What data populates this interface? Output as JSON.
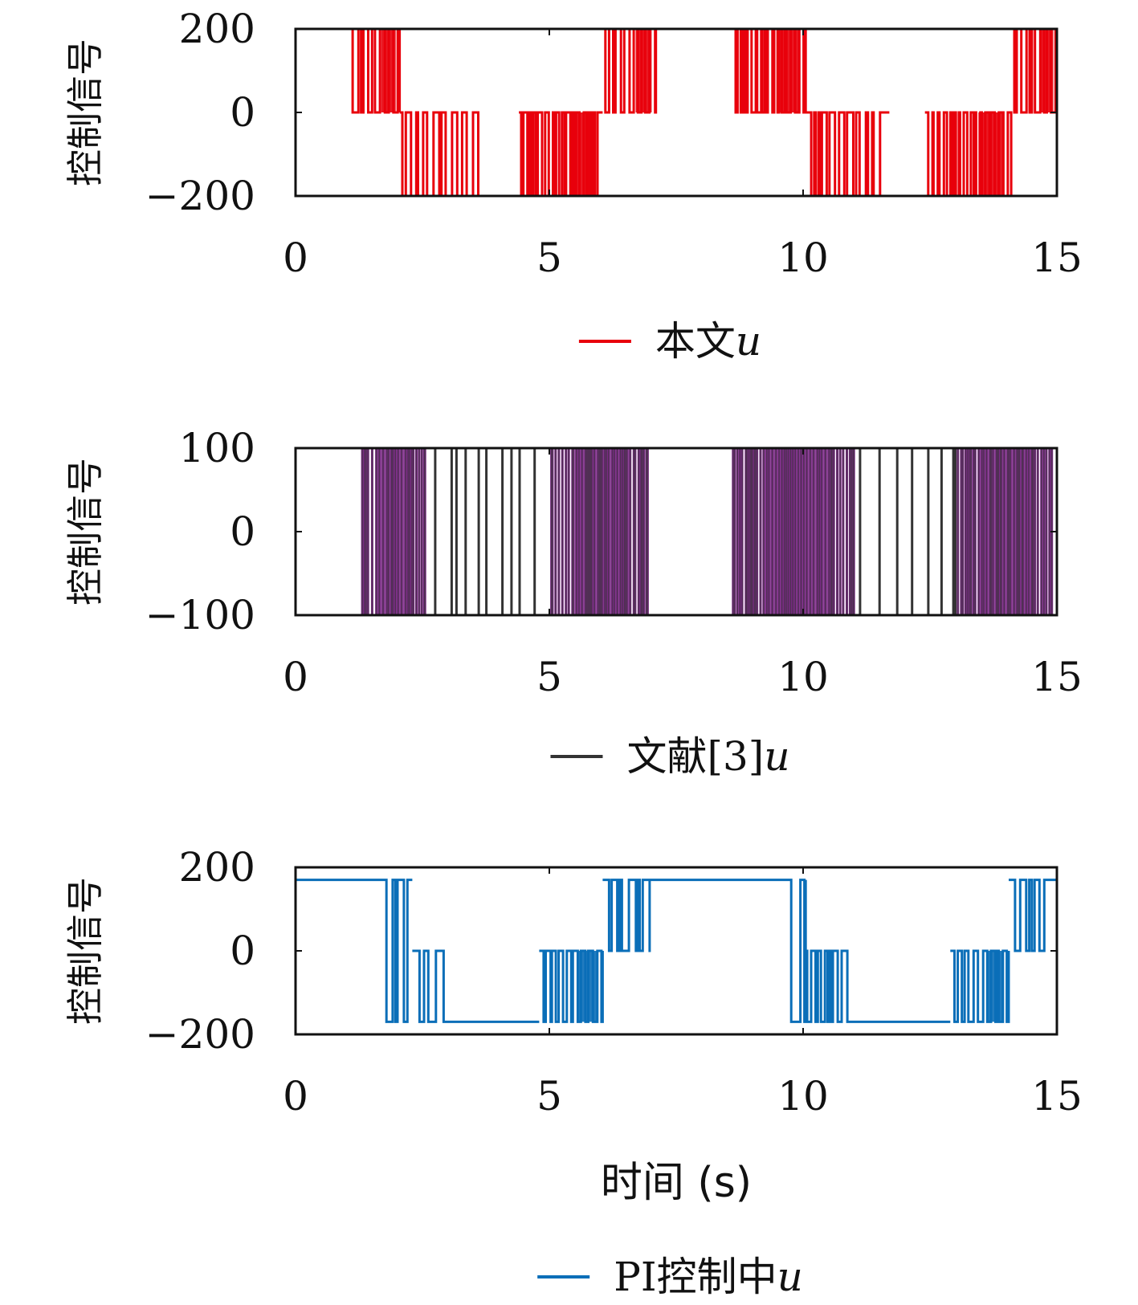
{
  "chart_data": [
    {
      "type": "line",
      "ylabel": "控制信号",
      "xlim": [
        0,
        15
      ],
      "ylim": [
        -200,
        200
      ],
      "xticks": [
        "0",
        "5",
        "10",
        "15"
      ],
      "yticks": [
        "200",
        "0",
        "−200"
      ],
      "legend": {
        "label": "本文",
        "var": "u",
        "position": "bottom-center"
      },
      "color": "#e8000b",
      "series": [
        {
          "name": "本文u",
          "levels": [
            200,
            0,
            -200
          ],
          "segments": [
            {
              "t0": 0.0,
              "t1": 1.1,
              "mode": "hold",
              "v": 200
            },
            {
              "t0": 1.1,
              "t1": 2.05,
              "mode": "switch",
              "hi": 200,
              "lo": 0,
              "density": 14
            },
            {
              "t0": 2.05,
              "t1": 3.6,
              "mode": "switch",
              "hi": 0,
              "lo": -200,
              "density": 12
            },
            {
              "t0": 3.6,
              "t1": 4.4,
              "mode": "hold",
              "v": -200
            },
            {
              "t0": 4.4,
              "t1": 6.05,
              "mode": "switch",
              "hi": 0,
              "lo": -200,
              "density": 18
            },
            {
              "t0": 6.05,
              "t1": 7.1,
              "mode": "switch",
              "hi": 200,
              "lo": 0,
              "density": 14
            },
            {
              "t0": 7.1,
              "t1": 8.6,
              "mode": "hold",
              "v": 200
            },
            {
              "t0": 8.6,
              "t1": 10.05,
              "mode": "switch",
              "hi": 200,
              "lo": 0,
              "density": 18
            },
            {
              "t0": 10.05,
              "t1": 11.7,
              "mode": "switch",
              "hi": 0,
              "lo": -200,
              "density": 12
            },
            {
              "t0": 11.7,
              "t1": 12.4,
              "mode": "hold",
              "v": -200
            },
            {
              "t0": 12.4,
              "t1": 14.1,
              "mode": "switch",
              "hi": 0,
              "lo": -200,
              "density": 18
            },
            {
              "t0": 14.1,
              "t1": 15.0,
              "mode": "switch",
              "hi": 200,
              "lo": 0,
              "density": 14
            }
          ]
        }
      ]
    },
    {
      "type": "line",
      "ylabel": "控制信号",
      "xlim": [
        0,
        15
      ],
      "ylim": [
        -100,
        100
      ],
      "xticks": [
        "0",
        "5",
        "10",
        "15"
      ],
      "yticks": [
        "100",
        "0",
        "−100"
      ],
      "legend": {
        "label": "文献[3]",
        "var": "u",
        "position": "bottom-center"
      },
      "color": "#333333",
      "fill_color": "#7b2a86",
      "series": [
        {
          "name": "文献[3]u",
          "levels": [
            100,
            -100
          ],
          "segments": [
            {
              "t0": 0.0,
              "t1": 1.25,
              "mode": "hold",
              "v": 100
            },
            {
              "t0": 1.25,
              "t1": 2.55,
              "mode": "switch",
              "hi": 100,
              "lo": -100,
              "density": 20,
              "fill": true
            },
            {
              "t0": 2.55,
              "t1": 5.0,
              "mode": "sparse",
              "hi": 100,
              "lo": -100,
              "density": 4
            },
            {
              "t0": 5.0,
              "t1": 7.0,
              "mode": "switch",
              "hi": 100,
              "lo": -100,
              "density": 22,
              "fill": true
            },
            {
              "t0": 7.0,
              "t1": 8.6,
              "mode": "hold",
              "v": 100
            },
            {
              "t0": 8.6,
              "t1": 11.0,
              "mode": "switch",
              "hi": 100,
              "lo": -100,
              "density": 22,
              "fill": true
            },
            {
              "t0": 11.0,
              "t1": 13.0,
              "mode": "sparse",
              "hi": 100,
              "lo": -100,
              "density": 4
            },
            {
              "t0": 13.0,
              "t1": 14.9,
              "mode": "switch",
              "hi": 100,
              "lo": -100,
              "density": 22,
              "fill": true
            }
          ]
        }
      ]
    },
    {
      "type": "line",
      "ylabel": "控制信号",
      "xlabel": "时间 (s)",
      "xlim": [
        0,
        15
      ],
      "ylim": [
        -200,
        200
      ],
      "xticks": [
        "0",
        "5",
        "10",
        "15"
      ],
      "yticks": [
        "200",
        "0",
        "−200"
      ],
      "legend": {
        "label": "PI控制中",
        "var": "u",
        "position": "bottom-center"
      },
      "color": "#0a6eb8",
      "series": [
        {
          "name": "PI控制中u",
          "levels": [
            170,
            0,
            -170
          ],
          "segments": [
            {
              "t0": 0.0,
              "t1": 1.65,
              "mode": "hold",
              "v": 170
            },
            {
              "t0": 1.65,
              "t1": 2.3,
              "mode": "switch",
              "hi": 170,
              "lo": -170,
              "density": 10
            },
            {
              "t0": 2.3,
              "t1": 2.95,
              "mode": "switch",
              "hi": 0,
              "lo": -170,
              "density": 8
            },
            {
              "t0": 2.95,
              "t1": 4.8,
              "mode": "hold",
              "v": -170
            },
            {
              "t0": 4.8,
              "t1": 6.05,
              "mode": "switch",
              "hi": 0,
              "lo": -170,
              "density": 16
            },
            {
              "t0": 6.05,
              "t1": 7.0,
              "mode": "switch",
              "hi": 170,
              "lo": 0,
              "density": 12
            },
            {
              "t0": 7.0,
              "t1": 9.6,
              "mode": "hold",
              "v": 170
            },
            {
              "t0": 9.6,
              "t1": 10.05,
              "mode": "switch",
              "hi": 170,
              "lo": -170,
              "density": 8
            },
            {
              "t0": 10.05,
              "t1": 11.1,
              "mode": "switch",
              "hi": 0,
              "lo": -170,
              "density": 12
            },
            {
              "t0": 11.1,
              "t1": 12.9,
              "mode": "hold",
              "v": -170
            },
            {
              "t0": 12.9,
              "t1": 14.05,
              "mode": "switch",
              "hi": 0,
              "lo": -170,
              "density": 16
            },
            {
              "t0": 14.05,
              "t1": 15.0,
              "mode": "switch",
              "hi": 170,
              "lo": 0,
              "density": 8
            }
          ]
        }
      ]
    }
  ]
}
